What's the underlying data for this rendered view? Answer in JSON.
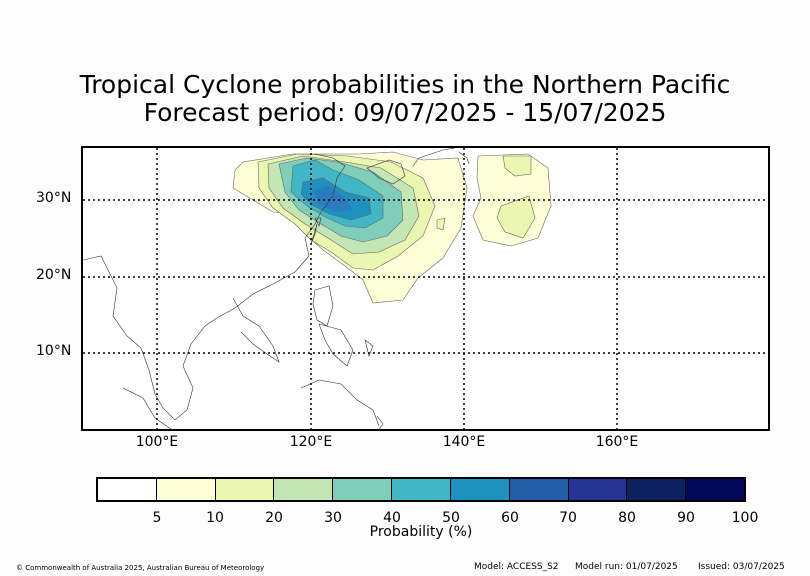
{
  "title_line1": "Tropical Cyclone probabilities in the Northern Pacific",
  "title_line2": "Forecast period: 09/07/2025 - 15/07/2025",
  "map": {
    "lat_labels": [
      "30°N",
      "20°N",
      "10°N"
    ],
    "lon_labels": [
      "100°E",
      "120°E",
      "140°E",
      "160°E"
    ]
  },
  "colorbar": {
    "label": "Probability (%)",
    "ticks": [
      "5",
      "10",
      "20",
      "30",
      "40",
      "50",
      "60",
      "70",
      "80",
      "90",
      "100"
    ],
    "colors": [
      "#ffffff",
      "#fdfed6",
      "#ebf6b1",
      "#c4e6b4",
      "#7fcdbb",
      "#41b6c4",
      "#1e91c0",
      "#225ea8",
      "#253494",
      "#0c1f5e",
      "#02075a"
    ]
  },
  "footer": {
    "copyright": "© Commonwealth of Australia 2025, Australian Bureau of Meteorology",
    "model": "Model: ACCESS_S2",
    "model_run": "Model run: 01/07/2025",
    "issued": "Issued: 03/07/2025"
  }
}
